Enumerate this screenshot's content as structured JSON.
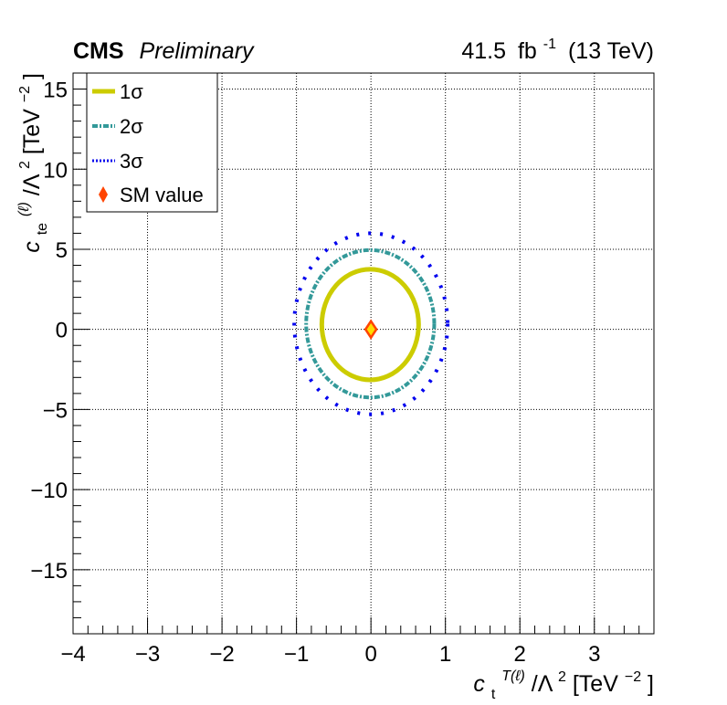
{
  "header": {
    "experiment": "CMS",
    "status": "Preliminary",
    "lumi": "41.5",
    "lumi_unit": "fb",
    "lumi_exp": "-1",
    "energy": "(13 TeV)"
  },
  "axes": {
    "x_label": {
      "sym": "c",
      "sub": "t",
      "sup": "T(ℓ)",
      "slash": "/Λ",
      "slash_sup": "2",
      "unit_open": "[TeV",
      "unit_sup": "−2",
      "unit_close": "]"
    },
    "y_label": {
      "sym": "c",
      "sub": "te",
      "sup": "(ℓ)",
      "slash": "/Λ",
      "slash_sup": "2",
      "unit_open": "[TeV",
      "unit_sup": "−2",
      "unit_close": "]"
    }
  },
  "legend": {
    "placement": "top-left",
    "items": [
      {
        "label": "1σ",
        "color": "#cccc00",
        "style": "solid"
      },
      {
        "label": "2σ",
        "color": "#339999",
        "style": "dash-dot"
      },
      {
        "label": "3σ",
        "color": "#0000ee",
        "style": "dotted"
      },
      {
        "label": "SM value",
        "color": "#ff4400",
        "style": "diamond"
      }
    ]
  },
  "chart_data": {
    "type": "contour",
    "xlim": [
      -4,
      3.8
    ],
    "ylim": [
      -19,
      16
    ],
    "x_ticks": [
      -4,
      -3,
      -2,
      -1,
      0,
      1,
      2,
      3
    ],
    "x_tick_labels": [
      "−4",
      "−3",
      "−2",
      "−1",
      "0",
      "1",
      "2",
      "3"
    ],
    "y_ticks": [
      -15,
      -10,
      -5,
      0,
      5,
      10,
      15
    ],
    "y_tick_labels": [
      "−15",
      "−10",
      "−5",
      "0",
      "5",
      "10",
      "15"
    ],
    "grid": true,
    "series": [
      {
        "name": "1σ",
        "color": "#cccc00",
        "style": "solid",
        "cx": -0.01,
        "cy": 0.3,
        "rx": 0.65,
        "ry": 3.45
      },
      {
        "name": "2σ",
        "color": "#339999",
        "style": "dash-dot",
        "cx": -0.01,
        "cy": 0.35,
        "rx": 0.86,
        "ry": 4.6
      },
      {
        "name": "3σ",
        "color": "#0000ee",
        "style": "dotted",
        "cx": 0.0,
        "cy": 0.35,
        "rx": 1.03,
        "ry": 5.65
      }
    ],
    "sm_point": {
      "name": "SM value",
      "x": 0,
      "y": 0,
      "color": "#ff4400"
    }
  }
}
